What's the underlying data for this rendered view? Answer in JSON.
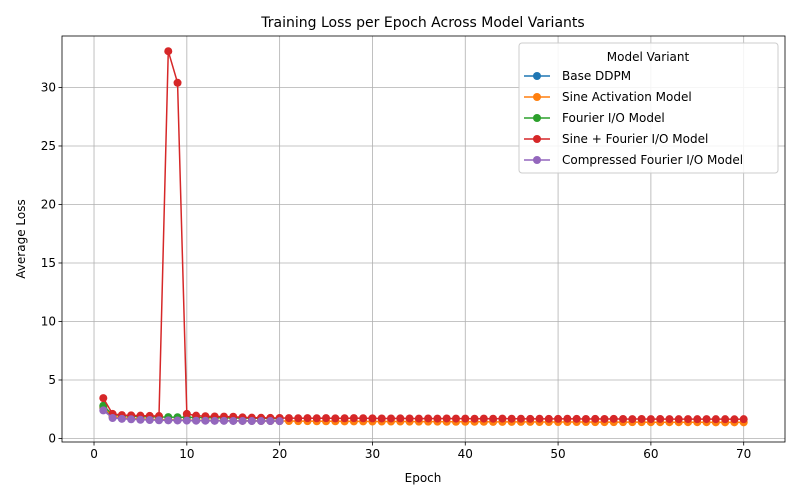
{
  "chart_data": {
    "type": "line",
    "title": "Training Loss per Epoch Across Model Variants",
    "xlabel": "Epoch",
    "ylabel": "Average Loss",
    "xlim": [
      -3.45,
      74.45
    ],
    "ylim": [
      -0.3,
      34.4
    ],
    "xticks": [
      0,
      10,
      20,
      30,
      40,
      50,
      60,
      70
    ],
    "yticks": [
      0,
      5,
      10,
      15,
      20,
      25,
      30
    ],
    "grid": true,
    "legend": {
      "title": "Model Variant",
      "placement": "top-right"
    },
    "series": [
      {
        "name": "Base DDPM",
        "color": "#1f77b4",
        "x": [
          1,
          2,
          3,
          4,
          5,
          6,
          7,
          8,
          9,
          10,
          11,
          12,
          13,
          14,
          15,
          16,
          17,
          18,
          19,
          20
        ],
        "values": [
          2.6,
          1.85,
          1.75,
          1.7,
          1.65,
          1.62,
          1.6,
          1.58,
          1.57,
          1.56,
          1.55,
          1.54,
          1.53,
          1.53,
          1.52,
          1.52,
          1.51,
          1.51,
          1.5,
          1.5
        ]
      },
      {
        "name": "Sine Activation Model",
        "color": "#ff7f0e",
        "x": [
          1,
          2,
          3,
          4,
          5,
          6,
          7,
          8,
          9,
          10,
          11,
          12,
          13,
          14,
          15,
          16,
          17,
          18,
          19,
          20,
          21,
          22,
          23,
          24,
          25,
          26,
          27,
          28,
          29,
          30,
          31,
          32,
          33,
          34,
          35,
          36,
          37,
          38,
          39,
          40,
          41,
          42,
          43,
          44,
          45,
          46,
          47,
          48,
          49,
          50,
          51,
          52,
          53,
          54,
          55,
          56,
          57,
          58,
          59,
          60,
          61,
          62,
          63,
          64,
          65,
          66,
          67,
          68,
          69,
          70
        ],
        "values": [
          2.7,
          1.9,
          1.78,
          1.72,
          1.68,
          1.65,
          1.62,
          1.6,
          1.58,
          1.57,
          1.56,
          1.55,
          1.54,
          1.53,
          1.52,
          1.51,
          1.51,
          1.5,
          1.5,
          1.49,
          1.49,
          1.48,
          1.48,
          1.47,
          1.47,
          1.47,
          1.46,
          1.46,
          1.46,
          1.45,
          1.45,
          1.45,
          1.45,
          1.44,
          1.44,
          1.44,
          1.44,
          1.43,
          1.43,
          1.43,
          1.43,
          1.43,
          1.42,
          1.42,
          1.42,
          1.42,
          1.42,
          1.41,
          1.41,
          1.41,
          1.41,
          1.41,
          1.41,
          1.4,
          1.4,
          1.4,
          1.4,
          1.4,
          1.4,
          1.39,
          1.39,
          1.39,
          1.39,
          1.39,
          1.39,
          1.39,
          1.38,
          1.38,
          1.38,
          1.38
        ]
      },
      {
        "name": "Fourier I/O Model",
        "color": "#2ca02c",
        "x": [
          1,
          2,
          3,
          4,
          5,
          6,
          7,
          8,
          9,
          10,
          11,
          12,
          13,
          14,
          15,
          16,
          17,
          18,
          19,
          20
        ],
        "values": [
          2.8,
          2.05,
          1.95,
          1.9,
          1.87,
          1.85,
          1.84,
          1.83,
          1.82,
          1.8,
          1.79,
          1.78,
          1.77,
          1.76,
          1.75,
          1.74,
          1.73,
          1.72,
          1.71,
          1.7
        ]
      },
      {
        "name": "Sine + Fourier I/O Model",
        "color": "#d62728",
        "x": [
          1,
          2,
          3,
          4,
          5,
          6,
          7,
          8,
          9,
          10,
          11,
          12,
          13,
          14,
          15,
          16,
          17,
          18,
          19,
          20,
          21,
          22,
          23,
          24,
          25,
          26,
          27,
          28,
          29,
          30,
          31,
          32,
          33,
          34,
          35,
          36,
          37,
          38,
          39,
          40,
          41,
          42,
          43,
          44,
          45,
          46,
          47,
          48,
          49,
          50,
          51,
          52,
          53,
          54,
          55,
          56,
          57,
          58,
          59,
          60,
          61,
          62,
          63,
          64,
          65,
          66,
          67,
          68,
          69,
          70
        ],
        "values": [
          3.45,
          2.1,
          2.0,
          1.98,
          1.95,
          1.93,
          1.92,
          33.1,
          30.4,
          2.1,
          1.95,
          1.9,
          1.88,
          1.87,
          1.86,
          1.8,
          1.78,
          1.77,
          1.76,
          1.75,
          1.74,
          1.73,
          1.74,
          1.73,
          1.74,
          1.72,
          1.73,
          1.74,
          1.73,
          1.72,
          1.71,
          1.71,
          1.72,
          1.71,
          1.7,
          1.71,
          1.7,
          1.71,
          1.7,
          1.7,
          1.69,
          1.7,
          1.69,
          1.7,
          1.69,
          1.69,
          1.68,
          1.69,
          1.68,
          1.68,
          1.69,
          1.68,
          1.67,
          1.68,
          1.67,
          1.68,
          1.67,
          1.66,
          1.67,
          1.66,
          1.67,
          1.66,
          1.65,
          1.66,
          1.65,
          1.66,
          1.65,
          1.65,
          1.64,
          1.65
        ]
      },
      {
        "name": "Compressed Fourier I/O Model",
        "color": "#9467bd",
        "x": [
          1,
          2,
          3,
          4,
          5,
          6,
          7,
          8,
          9,
          10,
          11,
          12,
          13,
          14,
          15,
          16,
          17,
          18,
          19,
          20
        ],
        "values": [
          2.4,
          1.75,
          1.68,
          1.64,
          1.6,
          1.58,
          1.56,
          1.55,
          1.54,
          1.53,
          1.52,
          1.52,
          1.51,
          1.51,
          1.5,
          1.5,
          1.49,
          1.49,
          1.49,
          1.48
        ]
      }
    ]
  }
}
